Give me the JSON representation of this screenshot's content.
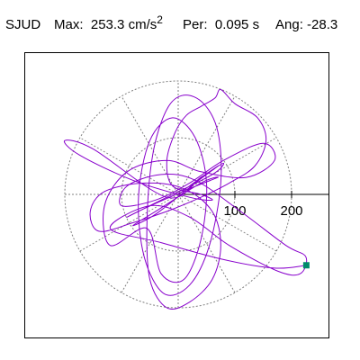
{
  "header": {
    "station": "SJUD",
    "max_label": "Max:",
    "max_value": "253.3",
    "max_unit": "cm/s",
    "max_unit_exp": "2",
    "per_label": "Per:",
    "per_value": "0.095 s",
    "ang_label": "Ang:",
    "ang_value": "-28.3"
  },
  "chart_data": {
    "type": "line",
    "title": "SJUD",
    "xlabel": "",
    "ylabel": "",
    "max_amplitude": 253.3,
    "period_s": 0.095,
    "angle_deg": -28.3,
    "axis_ticks": [
      100,
      200
    ],
    "grid_rings": [
      100,
      200
    ],
    "grid": true,
    "trace_color": "#8800cc",
    "grid_color": "#808080",
    "end_marker_color": "#008b6b",
    "end_point": {
      "x": 226,
      "y": -125
    },
    "series": [
      {
        "values": [
          [
            0,
            0
          ],
          [
            20,
            15
          ],
          [
            55,
            40
          ],
          [
            80,
            55
          ],
          [
            60,
            35
          ],
          [
            -30,
            -10
          ],
          [
            -90,
            -40
          ],
          [
            -60,
            -25
          ],
          [
            20,
            10
          ],
          [
            70,
            30
          ],
          [
            40,
            20
          ],
          [
            -40,
            -30
          ],
          [
            -80,
            -55
          ],
          [
            -40,
            -35
          ],
          [
            30,
            20
          ],
          [
            70,
            50
          ],
          [
            40,
            30
          ],
          [
            -20,
            -5
          ],
          [
            -150,
            80
          ],
          [
            -200,
            95
          ],
          [
            -175,
            70
          ],
          [
            -80,
            25
          ],
          [
            20,
            -5
          ],
          [
            60,
            -10
          ],
          [
            40,
            0
          ],
          [
            -10,
            15
          ],
          [
            -20,
            60
          ],
          [
            -5,
            110
          ],
          [
            15,
            140
          ],
          [
            40,
            155
          ],
          [
            65,
            170
          ],
          [
            75,
            185
          ],
          [
            100,
            160
          ],
          [
            140,
            135
          ],
          [
            155,
            95
          ],
          [
            135,
            50
          ],
          [
            90,
            20
          ],
          [
            40,
            -5
          ],
          [
            -20,
            -30
          ],
          [
            -80,
            -50
          ],
          [
            -140,
            -65
          ],
          [
            -155,
            -30
          ],
          [
            -130,
            5
          ],
          [
            -60,
            20
          ],
          [
            10,
            10
          ],
          [
            60,
            -30
          ],
          [
            75,
            -90
          ],
          [
            60,
            -150
          ],
          [
            20,
            -190
          ],
          [
            -20,
            -200
          ],
          [
            -50,
            -150
          ],
          [
            -55,
            -50
          ],
          [
            -45,
            70
          ],
          [
            -20,
            150
          ],
          [
            10,
            175
          ],
          [
            45,
            160
          ],
          [
            70,
            110
          ],
          [
            75,
            20
          ],
          [
            55,
            -90
          ],
          [
            20,
            -160
          ],
          [
            -25,
            -175
          ],
          [
            -60,
            -110
          ],
          [
            -70,
            -5
          ],
          [
            -50,
            95
          ],
          [
            -10,
            135
          ],
          [
            30,
            100
          ],
          [
            50,
            20
          ],
          [
            40,
            -80
          ],
          [
            10,
            -150
          ],
          [
            -30,
            -140
          ],
          [
            -55,
            -60
          ],
          [
            -120,
            -90
          ],
          [
            -130,
            -20
          ],
          [
            -90,
            40
          ],
          [
            -20,
            60
          ],
          [
            40,
            40
          ],
          [
            120,
            30
          ],
          [
            170,
            60
          ],
          [
            150,
            90
          ],
          [
            80,
            60
          ],
          [
            20,
            20
          ],
          [
            -40,
            -10
          ],
          [
            -100,
            -20
          ],
          [
            -90,
            15
          ],
          [
            -30,
            35
          ],
          [
            30,
            25
          ],
          [
            110,
            -30
          ],
          [
            190,
            -90
          ],
          [
            225,
            -110
          ],
          [
            215,
            -140
          ],
          [
            175,
            -135
          ],
          [
            90,
            -90
          ],
          [
            20,
            -40
          ],
          [
            -50,
            -20
          ],
          [
            -120,
            -60
          ],
          [
            -30,
            -85
          ],
          [
            80,
            -115
          ],
          [
            170,
            -130
          ],
          [
            226,
            -125
          ]
        ]
      }
    ]
  }
}
